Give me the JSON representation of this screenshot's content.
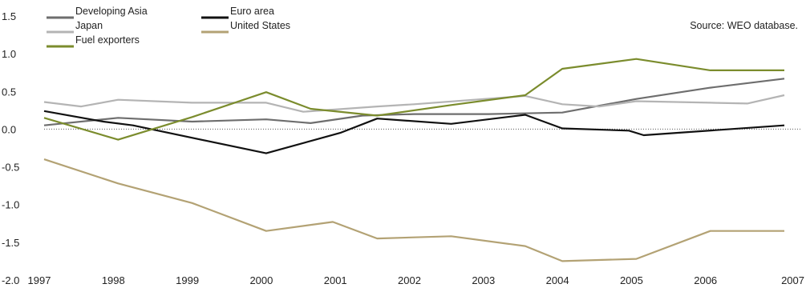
{
  "chart_data": {
    "type": "line",
    "title": "",
    "xlabel": "",
    "ylabel": "",
    "source": "Source: WEO database.",
    "x": [
      "1997",
      "1998",
      "1999",
      "2000",
      "2001",
      "2002",
      "2003",
      "2004",
      "2005",
      "2006",
      "2007"
    ],
    "ylim": [
      -2.0,
      1.5
    ],
    "yticks": [
      "1.5",
      "1.0",
      "0.5",
      "0.0",
      "-0.5",
      "-1.0",
      "-1.5",
      "-2.0"
    ],
    "grid": false,
    "zero_line": "dotted",
    "legend_position": "top-left",
    "series": [
      {
        "name": "Developing Asia",
        "color": "#6e6e6e",
        "points": [
          [
            0,
            0.05
          ],
          [
            1,
            0.15
          ],
          [
            2,
            0.1
          ],
          [
            3,
            0.13
          ],
          [
            3.6,
            0.08
          ],
          [
            4.3,
            0.18
          ],
          [
            5,
            0.2
          ],
          [
            6,
            0.2
          ],
          [
            7,
            0.22
          ],
          [
            8,
            0.4
          ],
          [
            9,
            0.55
          ],
          [
            10,
            0.67
          ]
        ]
      },
      {
        "name": "Euro area",
        "color": "#111111",
        "points": [
          [
            0,
            0.24
          ],
          [
            0.8,
            0.1
          ],
          [
            1.2,
            0.05
          ],
          [
            3,
            -0.32
          ],
          [
            4,
            -0.05
          ],
          [
            4.5,
            0.14
          ],
          [
            5.5,
            0.07
          ],
          [
            6.5,
            0.19
          ],
          [
            7,
            0.01
          ],
          [
            7.9,
            -0.02
          ],
          [
            8.1,
            -0.08
          ],
          [
            10,
            0.05
          ]
        ]
      },
      {
        "name": "Japan",
        "color": "#b4b4b4",
        "points": [
          [
            0,
            0.36
          ],
          [
            0.5,
            0.3
          ],
          [
            1,
            0.39
          ],
          [
            2,
            0.35
          ],
          [
            3,
            0.35
          ],
          [
            3.5,
            0.23
          ],
          [
            4.5,
            0.3
          ],
          [
            5,
            0.33
          ],
          [
            6.5,
            0.44
          ],
          [
            7,
            0.33
          ],
          [
            7.5,
            0.3
          ],
          [
            8,
            0.37
          ],
          [
            9,
            0.35
          ],
          [
            9.5,
            0.34
          ],
          [
            10,
            0.45
          ]
        ]
      },
      {
        "name": "United States",
        "color": "#b3a274",
        "points": [
          [
            0,
            -0.4
          ],
          [
            1,
            -0.72
          ],
          [
            2,
            -0.98
          ],
          [
            3,
            -1.35
          ],
          [
            3.9,
            -1.23
          ],
          [
            4.5,
            -1.45
          ],
          [
            5.5,
            -1.42
          ],
          [
            6.5,
            -1.55
          ],
          [
            7,
            -1.75
          ],
          [
            8,
            -1.72
          ],
          [
            9,
            -1.35
          ],
          [
            10,
            -1.35
          ]
        ]
      },
      {
        "name": "Fuel exporters",
        "color": "#7b8c2d",
        "points": [
          [
            0,
            0.15
          ],
          [
            1,
            -0.14
          ],
          [
            2,
            0.16
          ],
          [
            3,
            0.49
          ],
          [
            3.6,
            0.27
          ],
          [
            4.5,
            0.18
          ],
          [
            5.5,
            0.32
          ],
          [
            6.5,
            0.45
          ],
          [
            7,
            0.8
          ],
          [
            8,
            0.93
          ],
          [
            9,
            0.78
          ],
          [
            10,
            0.78
          ]
        ]
      }
    ]
  }
}
